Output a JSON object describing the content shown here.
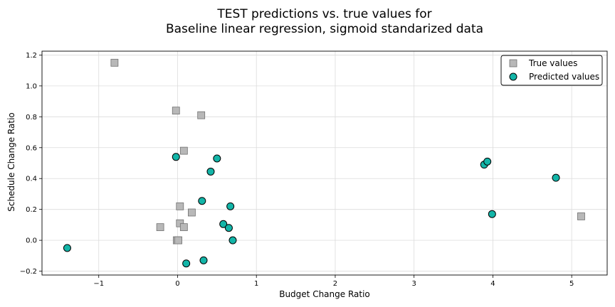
{
  "chart_data": {
    "type": "scatter",
    "title_line1": "TEST predictions vs. true values for",
    "title_line2": "Baseline linear regression, sigmoid standarized data",
    "xlabel": "Budget Change Ratio",
    "ylabel": "Schedule Change Ratio",
    "xlim": [
      -1.72,
      5.45
    ],
    "ylim": [
      -0.225,
      1.225
    ],
    "xticks": [
      -1,
      0,
      1,
      2,
      3,
      4,
      5
    ],
    "yticks": [
      -0.2,
      0.0,
      0.2,
      0.4,
      0.6,
      0.8,
      1.0,
      1.2
    ],
    "xtick_labels": [
      "−1",
      "0",
      "1",
      "2",
      "3",
      "4",
      "5"
    ],
    "ytick_labels": [
      "−0.2",
      "0.0",
      "0.2",
      "0.4",
      "0.6",
      "0.8",
      "1.0",
      "1.2"
    ],
    "grid": true,
    "legend_position": "top-right",
    "series": [
      {
        "name": "True values",
        "marker": "square",
        "color": "#b8b8b8",
        "edge_color": "#707070",
        "points": [
          [
            -0.8,
            1.15
          ],
          [
            -0.02,
            0.84
          ],
          [
            0.3,
            0.81
          ],
          [
            0.08,
            0.58
          ],
          [
            0.03,
            0.22
          ],
          [
            0.18,
            0.18
          ],
          [
            -0.22,
            0.085
          ],
          [
            0.03,
            0.11
          ],
          [
            0.08,
            0.085
          ],
          [
            -0.01,
            0.0
          ],
          [
            0.01,
            0.0
          ],
          [
            5.12,
            0.155
          ]
        ]
      },
      {
        "name": "Predicted values",
        "marker": "circle",
        "color": "#13b5a8",
        "edge_color": "#000000",
        "points": [
          [
            -1.4,
            -0.05
          ],
          [
            -0.02,
            0.54
          ],
          [
            0.5,
            0.53
          ],
          [
            0.42,
            0.445
          ],
          [
            0.31,
            0.255
          ],
          [
            0.67,
            0.22
          ],
          [
            0.58,
            0.105
          ],
          [
            0.65,
            0.08
          ],
          [
            0.7,
            0.0
          ],
          [
            0.11,
            -0.15
          ],
          [
            0.33,
            -0.13
          ],
          [
            3.89,
            0.49
          ],
          [
            3.93,
            0.51
          ],
          [
            3.99,
            0.17
          ],
          [
            4.8,
            0.405
          ]
        ]
      }
    ]
  }
}
